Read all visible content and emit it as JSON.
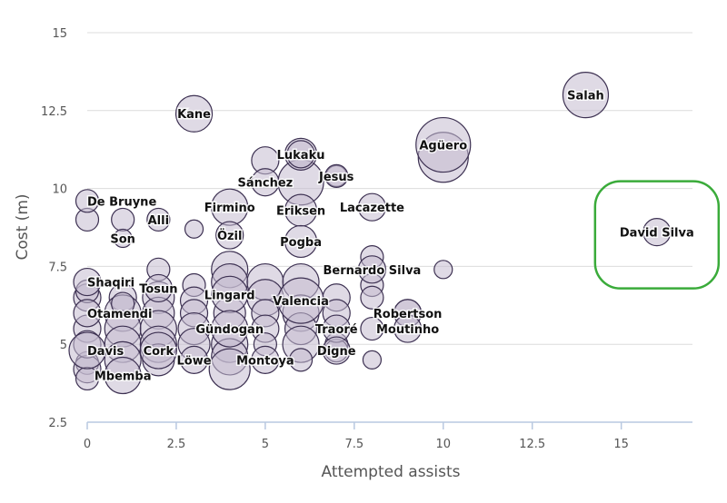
{
  "chart_data": {
    "type": "scatter",
    "title": "",
    "xlabel": "Attempted assists",
    "ylabel": "Cost (m)",
    "xlim": [
      0,
      17
    ],
    "ylim": [
      2.5,
      15
    ],
    "x_ticks": [
      "0",
      "2.5",
      "5",
      "7.5",
      "10",
      "12.5",
      "15"
    ],
    "y_ticks": [
      "2.5",
      "5",
      "7.5",
      "10",
      "12.5",
      "15"
    ],
    "grid": "horizontal",
    "colors": {
      "bubble_fill": "#c4bccf",
      "bubble_stroke": "#3d3152",
      "highlight": "#3aab3a",
      "grid": "#dcdcdc",
      "axis": "#b8c8e0"
    },
    "labeled_points": [
      {
        "name": "Salah",
        "x": 14,
        "y": 13.0,
        "size": 4
      },
      {
        "name": "Kane",
        "x": 3,
        "y": 12.4,
        "size": 3
      },
      {
        "name": "Agüero",
        "x": 10,
        "y": 11.4,
        "size": 5
      },
      {
        "name": "Lukaku",
        "x": 6,
        "y": 11.1,
        "size": 2
      },
      {
        "name": "Jesus",
        "x": 7,
        "y": 10.4,
        "size": 1.5
      },
      {
        "name": "Sánchez",
        "x": 5,
        "y": 10.2,
        "size": 2
      },
      {
        "name": "De Bruyne",
        "x": 0,
        "y": 9.6,
        "size": 1.5
      },
      {
        "name": "Firmino",
        "x": 4,
        "y": 9.4,
        "size": 3
      },
      {
        "name": "Eriksen",
        "x": 6,
        "y": 9.3,
        "size": 2.5
      },
      {
        "name": "Lacazette",
        "x": 8,
        "y": 9.4,
        "size": 2
      },
      {
        "name": "Alli",
        "x": 2,
        "y": 9.0,
        "size": 1.5
      },
      {
        "name": "Son",
        "x": 1,
        "y": 8.4,
        "size": 1
      },
      {
        "name": "Özil",
        "x": 4,
        "y": 8.5,
        "size": 2
      },
      {
        "name": "Pogba",
        "x": 6,
        "y": 8.3,
        "size": 2.5
      },
      {
        "name": "David Silva",
        "x": 16,
        "y": 8.6,
        "size": 2
      },
      {
        "name": "Bernardo Silva",
        "x": 8,
        "y": 7.4,
        "size": 2
      },
      {
        "name": "Shaqiri",
        "x": 0,
        "y": 7.0,
        "size": 2
      },
      {
        "name": "Tosun",
        "x": 2,
        "y": 6.8,
        "size": 2
      },
      {
        "name": "Lingard",
        "x": 4,
        "y": 6.6,
        "size": 3
      },
      {
        "name": "Valencia",
        "x": 6,
        "y": 6.4,
        "size": 4
      },
      {
        "name": "Robertson",
        "x": 9,
        "y": 6.0,
        "size": 2
      },
      {
        "name": "Otamendi",
        "x": 0,
        "y": 6.0,
        "size": 2
      },
      {
        "name": "Gündogan",
        "x": 4,
        "y": 5.5,
        "size": 3
      },
      {
        "name": "Traoré",
        "x": 7,
        "y": 5.5,
        "size": 2
      },
      {
        "name": "Moutinho",
        "x": 9,
        "y": 5.5,
        "size": 2
      },
      {
        "name": "Cork",
        "x": 2,
        "y": 4.8,
        "size": 3
      },
      {
        "name": "Davis",
        "x": 0,
        "y": 4.8,
        "size": 3
      },
      {
        "name": "Digne",
        "x": 7,
        "y": 4.8,
        "size": 2
      },
      {
        "name": "Montoya",
        "x": 5,
        "y": 4.5,
        "size": 2
      },
      {
        "name": "Löwe",
        "x": 3,
        "y": 4.5,
        "size": 2
      },
      {
        "name": "Mbemba",
        "x": 1,
        "y": 4.0,
        "size": 3
      }
    ],
    "unlabeled_points": [
      [
        0,
        9.0,
        1.5
      ],
      [
        1,
        9.0,
        1.5
      ],
      [
        3,
        8.7,
        1
      ],
      [
        10,
        7.4,
        1
      ],
      [
        8,
        7.8,
        1.5
      ],
      [
        8,
        6.9,
        1.5
      ],
      [
        8,
        4.5,
        1
      ],
      [
        0,
        6.5,
        2
      ],
      [
        0,
        5.5,
        2
      ],
      [
        0,
        4.4,
        1.5
      ],
      [
        0,
        4.2,
        2
      ],
      [
        0,
        3.9,
        1.5
      ],
      [
        0,
        6.7,
        1.5
      ],
      [
        0,
        5.0,
        2
      ],
      [
        1,
        6.5,
        2
      ],
      [
        1,
        6.0,
        3
      ],
      [
        1,
        5.5,
        3
      ],
      [
        1,
        5.0,
        3
      ],
      [
        1,
        4.5,
        3
      ],
      [
        1,
        6.3,
        1.5
      ],
      [
        2,
        7.4,
        1.5
      ],
      [
        2,
        6.5,
        2.5
      ],
      [
        2,
        6.0,
        2.5
      ],
      [
        2,
        5.5,
        3
      ],
      [
        2,
        5.0,
        3
      ],
      [
        2,
        4.5,
        2.5
      ],
      [
        3,
        6.9,
        1.5
      ],
      [
        3,
        6.4,
        2
      ],
      [
        3,
        6.0,
        2
      ],
      [
        3,
        5.5,
        2.5
      ],
      [
        3,
        5.0,
        2.5
      ],
      [
        4,
        7.4,
        3
      ],
      [
        4,
        7.0,
        3
      ],
      [
        4,
        6.0,
        2.5
      ],
      [
        4,
        5.0,
        3
      ],
      [
        4,
        4.6,
        3
      ],
      [
        4,
        4.2,
        3.5
      ],
      [
        5,
        7.0,
        3
      ],
      [
        5,
        6.5,
        3
      ],
      [
        5,
        6.0,
        2
      ],
      [
        5,
        5.5,
        2
      ],
      [
        5,
        5.0,
        1.5
      ],
      [
        6,
        7.0,
        3
      ],
      [
        6,
        6.0,
        3
      ],
      [
        6,
        5.5,
        2.5
      ],
      [
        6,
        5.0,
        3
      ],
      [
        6,
        4.5,
        1.5
      ],
      [
        7,
        6.5,
        2
      ],
      [
        7,
        6.0,
        2
      ],
      [
        7,
        5.0,
        1.5
      ],
      [
        7,
        4.8,
        1.5
      ],
      [
        9,
        6.0,
        2
      ],
      [
        8,
        6.5,
        1.5
      ],
      [
        8,
        5.5,
        1.5
      ],
      [
        10,
        11.0,
        4.5
      ],
      [
        6,
        10.2,
        4
      ],
      [
        6,
        11.1,
        2.5
      ],
      [
        5,
        10.9,
        2
      ],
      [
        7,
        10.4,
        1.3
      ]
    ],
    "annotations": [
      {
        "type": "highlight",
        "target": "David Silva"
      }
    ]
  }
}
